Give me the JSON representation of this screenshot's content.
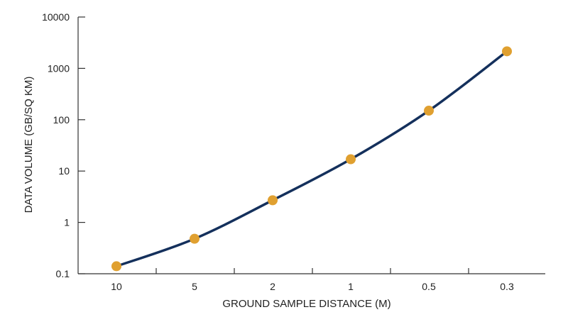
{
  "chart_data": {
    "type": "line",
    "xlabel": "GROUND SAMPLE DISTANCE (M)",
    "ylabel": "DATA VOLUME (GB/SQ KM)",
    "y_scale": "log",
    "ylim": [
      0.1,
      10000
    ],
    "x_ticks": [
      "10",
      "5",
      "2",
      "1",
      "0.5",
      "0.3"
    ],
    "y_ticks": [
      "0.1",
      "1",
      "10",
      "100",
      "1000",
      "10000"
    ],
    "x": [
      10,
      5,
      2,
      1,
      0.5,
      0.3
    ],
    "series": [
      {
        "values": [
          0.14,
          0.48,
          2.7,
          17,
          150,
          2150
        ]
      }
    ],
    "grid": false,
    "colors": {
      "line": "#14305c",
      "marker": "#e0a030",
      "axis": "#333333"
    }
  }
}
